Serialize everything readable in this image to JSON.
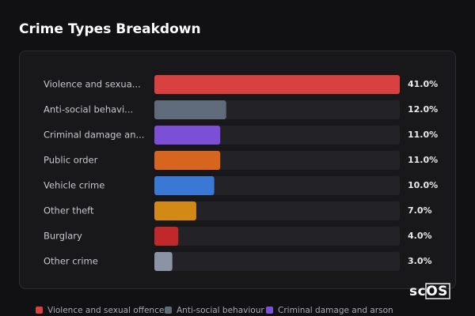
{
  "chart_data": {
    "type": "bar",
    "orientation": "horizontal",
    "title": "Crime Types Breakdown",
    "categories": [
      "Violence and sexua...",
      "Anti-social behavi...",
      "Criminal damage an...",
      "Public order",
      "Vehicle crime",
      "Other theft",
      "Burglary",
      "Other crime"
    ],
    "values": [
      41.0,
      12.0,
      11.0,
      11.0,
      10.0,
      7.0,
      4.0,
      3.0
    ],
    "value_labels": [
      "41.0%",
      "12.0%",
      "11.0%",
      "11.0%",
      "10.0%",
      "7.0%",
      "4.0%",
      "3.0%"
    ],
    "colors": [
      "#d94040",
      "#5f6b7a",
      "#7b4fd6",
      "#d7651e",
      "#3a78d6",
      "#d38a14",
      "#c0282b",
      "#8a94a4"
    ],
    "xlim": [
      0,
      41
    ],
    "legend": [
      {
        "name": "Violence and sexual offences",
        "color": "#d94040"
      },
      {
        "name": "Anti-social behaviour",
        "color": "#5f6b7a"
      },
      {
        "name": "Criminal damage and arson",
        "color": "#7b4fd6"
      }
    ],
    "watermark": "scOS"
  }
}
